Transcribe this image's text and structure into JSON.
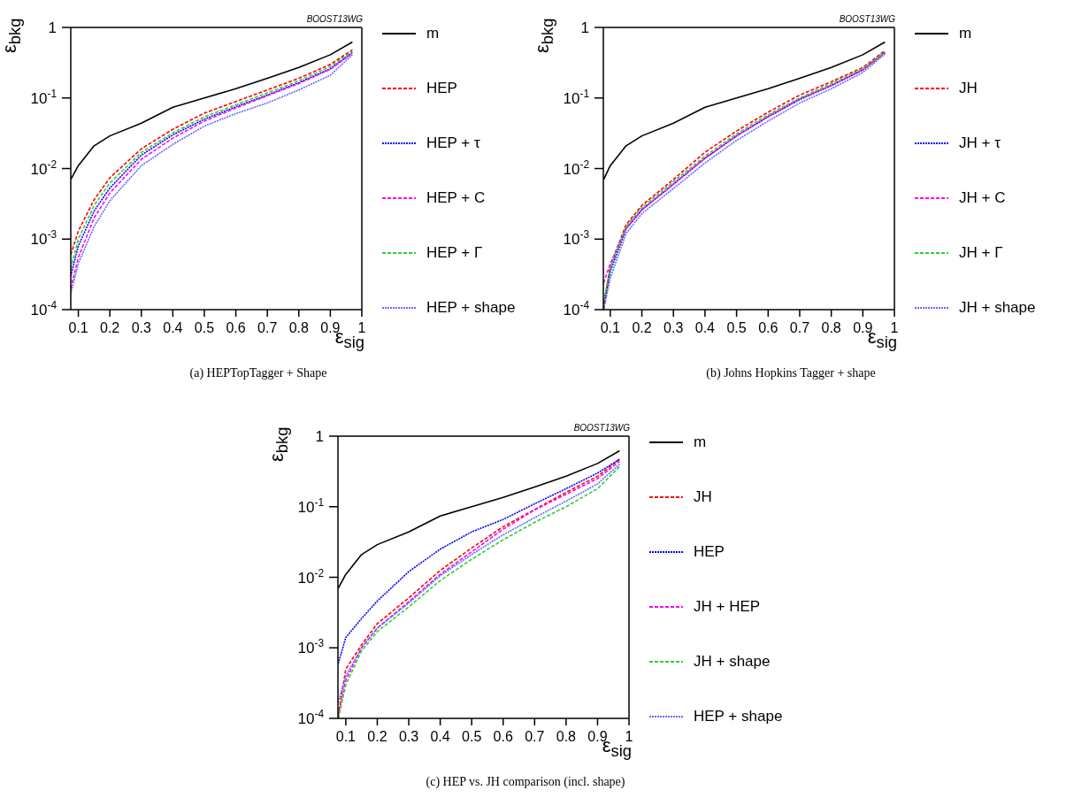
{
  "chart_data": [
    {
      "type": "line",
      "title": "(a)  HEPTopTagger + Shape",
      "xlabel": "ε$_{sig}$",
      "ylabel": "ε$_{bkg}$",
      "annotations": [
        "BOOST13WG"
      ],
      "log": "y",
      "legend": "right",
      "xlim": [
        0.076,
        1
      ],
      "ylim": [
        0.0001,
        1
      ],
      "xticks": [
        0.1,
        0.2,
        0.3,
        0.4,
        0.5,
        0.6,
        0.7,
        0.8,
        0.9,
        1
      ],
      "yticks": [
        {
          "value": 0.0001,
          "label": "10$^{-4}$"
        },
        {
          "value": 0.001,
          "label": "10$^{-3}$"
        },
        {
          "value": 0.01,
          "label": "10$^{-2}$"
        },
        {
          "value": 0.1,
          "label": "10$^{-1}$"
        },
        {
          "value": 1,
          "label": "1"
        }
      ],
      "x": [
        0.076,
        0.1,
        0.15,
        0.2,
        0.3,
        0.4,
        0.5,
        0.6,
        0.7,
        0.8,
        0.9,
        0.97
      ],
      "series": [
        {
          "name": "m",
          "color": "#000000",
          "line_style": "solid",
          "values": [
            0.007,
            0.011,
            0.021,
            0.029,
            0.044,
            0.074,
            0.1,
            0.135,
            0.19,
            0.27,
            0.41,
            0.62
          ]
        },
        {
          "name": "HEP",
          "color": "#ff0000",
          "line_style": "dashed",
          "values": [
            0.0006,
            0.0013,
            0.0036,
            0.0074,
            0.019,
            0.036,
            0.061,
            0.089,
            0.13,
            0.19,
            0.3,
            0.48
          ]
        },
        {
          "name": "HEP + τ",
          "color": "#0000ff",
          "line_style": "dotted",
          "values": [
            0.0003,
            0.0008,
            0.0025,
            0.0053,
            0.0155,
            0.03,
            0.05,
            0.075,
            0.11,
            0.165,
            0.26,
            0.44
          ]
        },
        {
          "name": "HEP + C",
          "color": "#ff00ff",
          "line_style": "dashed",
          "values": [
            0.0002,
            0.00055,
            0.002,
            0.0045,
            0.0135,
            0.027,
            0.047,
            0.072,
            0.108,
            0.16,
            0.255,
            0.43
          ]
        },
        {
          "name": "HEP + Γ",
          "color": "#33cc33",
          "line_style": "dashed",
          "values": [
            0.00038,
            0.001,
            0.003,
            0.0062,
            0.017,
            0.032,
            0.054,
            0.08,
            0.118,
            0.175,
            0.28,
            0.46
          ]
        },
        {
          "name": "HEP + shape",
          "color": "#6666ff",
          "line_style": "dotted",
          "values": [
            0.00017,
            0.00045,
            0.0015,
            0.0035,
            0.011,
            0.022,
            0.04,
            0.06,
            0.085,
            0.13,
            0.21,
            0.41
          ]
        }
      ]
    },
    {
      "type": "line",
      "title": "(b)  Johns Hopkins Tagger + shape",
      "xlabel": "ε$_{sig}$",
      "ylabel": "ε$_{bkg}$",
      "annotations": [
        "BOOST13WG"
      ],
      "log": "y",
      "legend": "right",
      "xlim": [
        0.078,
        1
      ],
      "ylim": [
        0.0001,
        1
      ],
      "xticks": [
        0.1,
        0.2,
        0.3,
        0.4,
        0.5,
        0.6,
        0.7,
        0.8,
        0.9,
        1
      ],
      "yticks": [
        {
          "value": 0.0001,
          "label": "10$^{-4}$"
        },
        {
          "value": 0.001,
          "label": "10$^{-3}$"
        },
        {
          "value": 0.01,
          "label": "10$^{-2}$"
        },
        {
          "value": 0.1,
          "label": "10$^{-1}$"
        },
        {
          "value": 1,
          "label": "1"
        }
      ],
      "x": [
        0.079,
        0.1,
        0.15,
        0.2,
        0.3,
        0.4,
        0.5,
        0.6,
        0.7,
        0.8,
        0.9,
        0.97
      ],
      "series": [
        {
          "name": "m",
          "color": "#000000",
          "line_style": "solid",
          "values": [
            0.007,
            0.011,
            0.021,
            0.029,
            0.044,
            0.074,
            0.1,
            0.135,
            0.19,
            0.27,
            0.41,
            0.62
          ]
        },
        {
          "name": "JH",
          "color": "#ff0000",
          "line_style": "dashed",
          "values": [
            0.0001,
            0.00042,
            0.0016,
            0.003,
            0.007,
            0.017,
            0.034,
            0.063,
            0.11,
            0.17,
            0.27,
            0.47
          ]
        },
        {
          "name": "JH + τ",
          "color": "#0000ff",
          "line_style": "dotted",
          "values": [
            0.00011,
            0.00035,
            0.0014,
            0.0026,
            0.006,
            0.014,
            0.029,
            0.054,
            0.095,
            0.15,
            0.25,
            0.44
          ]
        },
        {
          "name": "JH + C",
          "color": "#ff00ff",
          "line_style": "dashed",
          "values": [
            0.00024,
            0.00045,
            0.0014,
            0.0026,
            0.006,
            0.014,
            0.029,
            0.055,
            0.097,
            0.15,
            0.25,
            0.44
          ]
        },
        {
          "name": "JH + Γ",
          "color": "#33cc33",
          "line_style": "dashed",
          "values": [
            0.00013,
            0.0004,
            0.0015,
            0.0028,
            0.0065,
            0.015,
            0.031,
            0.058,
            0.1,
            0.16,
            0.26,
            0.45
          ]
        },
        {
          "name": "JH + shape",
          "color": "#6666ff",
          "line_style": "dotted",
          "values": [
            0.0001,
            0.00028,
            0.0012,
            0.0023,
            0.0052,
            0.012,
            0.025,
            0.047,
            0.085,
            0.135,
            0.23,
            0.42
          ]
        }
      ]
    },
    {
      "type": "line",
      "title": "(c)  HEP vs. JH comparison (incl. shape)",
      "xlabel": "ε$_{sig}$",
      "ylabel": "ε$_{bkg}$",
      "annotations": [
        "BOOST13WG"
      ],
      "log": "y",
      "legend": "right",
      "xlim": [
        0.075,
        1
      ],
      "ylim": [
        0.0001,
        1
      ],
      "xticks": [
        0.1,
        0.2,
        0.3,
        0.4,
        0.5,
        0.6,
        0.7,
        0.8,
        0.9,
        1
      ],
      "yticks": [
        {
          "value": 0.0001,
          "label": "10$^{-4}$"
        },
        {
          "value": 0.001,
          "label": "10$^{-3}$"
        },
        {
          "value": 0.01,
          "label": "10$^{-2}$"
        },
        {
          "value": 0.1,
          "label": "10$^{-1}$"
        },
        {
          "value": 1,
          "label": "1"
        }
      ],
      "x": [
        0.076,
        0.1,
        0.15,
        0.2,
        0.3,
        0.4,
        0.5,
        0.6,
        0.7,
        0.8,
        0.9,
        0.97
      ],
      "series": [
        {
          "name": "m",
          "color": "#000000",
          "line_style": "solid",
          "values": [
            0.007,
            0.011,
            0.021,
            0.029,
            0.044,
            0.074,
            0.1,
            0.135,
            0.19,
            0.27,
            0.41,
            0.62
          ]
        },
        {
          "name": "JH",
          "color": "#ff0000",
          "line_style": "dashed",
          "values": [
            0.00011,
            0.0005,
            0.0011,
            0.0022,
            0.0051,
            0.0125,
            0.026,
            0.052,
            0.091,
            0.16,
            0.27,
            0.47
          ]
        },
        {
          "name": "HEP",
          "color": "#0000ff",
          "line_style": "dotted",
          "values": [
            0.0006,
            0.0014,
            0.0026,
            0.0046,
            0.012,
            0.025,
            0.044,
            0.066,
            0.11,
            0.18,
            0.3,
            0.47
          ]
        },
        {
          "name": "JH + HEP",
          "color": "#ff00ff",
          "line_style": "dashed",
          "values": [
            0.0001,
            0.00035,
            0.001,
            0.0019,
            0.0045,
            0.011,
            0.023,
            0.048,
            0.09,
            0.15,
            0.25,
            0.44
          ]
        },
        {
          "name": "JH + shape",
          "color": "#33cc33",
          "line_style": "dashed",
          "values": [
            0.0001,
            0.0003,
            0.0009,
            0.0017,
            0.0038,
            0.009,
            0.018,
            0.034,
            0.06,
            0.1,
            0.18,
            0.37
          ]
        },
        {
          "name": "HEP + shape",
          "color": "#6666ff",
          "line_style": "dotted",
          "values": [
            0.00017,
            0.0004,
            0.001,
            0.0019,
            0.0043,
            0.0105,
            0.021,
            0.04,
            0.07,
            0.12,
            0.21,
            0.4
          ]
        }
      ]
    }
  ]
}
